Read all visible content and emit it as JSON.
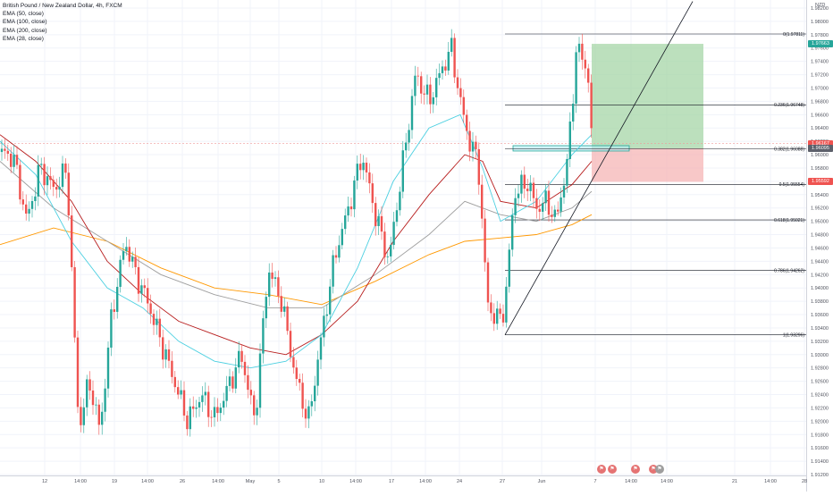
{
  "legend": {
    "symbol": "British Pound / New Zealand Dollar, 4h, FXCM",
    "indicators": [
      "EMA (50, close)",
      "EMA (100, close)",
      "EMA (200, close)",
      "EMA (28, close)"
    ]
  },
  "price_scale": {
    "currency": "NZD",
    "ticks": [
      "1.98200",
      "1.98000",
      "1.97800",
      "1.97600",
      "1.97400",
      "1.97200",
      "1.97000",
      "1.96800",
      "1.96600",
      "1.96400",
      "1.96200",
      "1.96000",
      "1.95800",
      "1.95600",
      "1.95400",
      "1.95200",
      "1.95000",
      "1.94800",
      "1.94600",
      "1.94400",
      "1.94200",
      "1.94000",
      "1.93800",
      "1.93600",
      "1.93400",
      "1.93200",
      "1.93000",
      "1.92800",
      "1.92600",
      "1.92400",
      "1.92200",
      "1.92000",
      "1.91800",
      "1.91600",
      "1.91400",
      "1.91200"
    ],
    "badges": [
      {
        "text": "1.97663",
        "color": "#26a69a",
        "price": 1.97663
      },
      {
        "text": "1.96167",
        "color": "#ef5350",
        "price": 1.96167
      },
      {
        "text": "1.96095",
        "color": "#5d606b",
        "price": 1.96095
      },
      {
        "text": "1.95592",
        "color": "#ef5350",
        "price": 1.95592
      }
    ]
  },
  "time_scale": {
    "labels": [
      "12",
      "14:00",
      "19",
      "14:00",
      "26",
      "14:00",
      "May",
      "5",
      "10",
      "14:00",
      "17",
      "14:00",
      "24",
      "27",
      "Jun",
      "7",
      "14:00",
      "14:00",
      "21",
      "14:00",
      "28"
    ]
  },
  "fib": {
    "levels": [
      {
        "label": "0(1.97811)",
        "price": 1.97811
      },
      {
        "label": "0.236(1.96748)",
        "price": 1.96748
      },
      {
        "label": "0.382(1.96088)",
        "price": 1.96088
      },
      {
        "label": "0.5(1.95554)",
        "price": 1.95554
      },
      {
        "label": "0.618(1.95021)",
        "price": 1.95021
      },
      {
        "label": "0.786(1.94262)",
        "price": 1.94262
      },
      {
        "label": "1(1.93296)",
        "price": 1.93296
      }
    ]
  },
  "position": {
    "type": "long",
    "entry": 1.96095,
    "target": 1.97663,
    "stop": 1.95592,
    "colors": {
      "profit": "#a5d6a7",
      "loss": "#f5b5b5"
    }
  },
  "chart_data": {
    "type": "candlestick",
    "title": "British Pound / New Zealand Dollar, 4h, FXCM",
    "ylim": [
      1.911,
      1.983
    ],
    "series_colors": {
      "up": "#26a69a",
      "down": "#ef5350",
      "ema50": "#b71c1c",
      "ema100": "#9e9e9e",
      "ema200": "#ff9800",
      "ema28": "#4dd0e1"
    },
    "price_path": [
      [
        0,
        1.9604
      ],
      [
        15,
        1.9596
      ],
      [
        30,
        1.95
      ],
      [
        45,
        1.9582
      ],
      [
        60,
        1.9548
      ],
      [
        75,
        1.9578
      ],
      [
        88,
        1.919
      ],
      [
        100,
        1.926
      ],
      [
        112,
        1.9185
      ],
      [
        125,
        1.936
      ],
      [
        140,
        1.947
      ],
      [
        152,
        1.942
      ],
      [
        165,
        1.938
      ],
      [
        180,
        1.932
      ],
      [
        195,
        1.926
      ],
      [
        210,
        1.92
      ],
      [
        225,
        1.924
      ],
      [
        240,
        1.9205
      ],
      [
        255,
        1.925
      ],
      [
        270,
        1.93
      ],
      [
        285,
        1.92
      ],
      [
        300,
        1.943
      ],
      [
        315,
        1.938
      ],
      [
        330,
        1.927
      ],
      [
        345,
        1.92
      ],
      [
        360,
        1.933
      ],
      [
        375,
        1.945
      ],
      [
        390,
        1.952
      ],
      [
        405,
        1.96
      ],
      [
        420,
        1.951
      ],
      [
        435,
        1.944
      ],
      [
        450,
        1.958
      ],
      [
        465,
        1.972
      ],
      [
        480,
        1.968
      ],
      [
        495,
        1.973
      ],
      [
        505,
        1.976
      ],
      [
        515,
        1.968
      ],
      [
        525,
        1.962
      ],
      [
        535,
        1.959
      ],
      [
        545,
        1.938
      ],
      [
        555,
        1.935
      ],
      [
        565,
        1.937
      ],
      [
        575,
        1.954
      ],
      [
        590,
        1.956
      ],
      [
        600,
        1.952
      ],
      [
        612,
        1.953
      ],
      [
        622,
        1.95
      ],
      [
        635,
        1.959
      ],
      [
        645,
        1.976
      ],
      [
        652,
        1.9745
      ],
      [
        658,
        1.972
      ],
      [
        662,
        1.9617
      ]
    ],
    "ema50_path": [
      [
        0,
        1.963
      ],
      [
        40,
        1.959
      ],
      [
        80,
        1.953
      ],
      [
        120,
        1.944
      ],
      [
        160,
        1.939
      ],
      [
        200,
        1.935
      ],
      [
        240,
        1.933
      ],
      [
        280,
        1.931
      ],
      [
        320,
        1.93
      ],
      [
        360,
        1.933
      ],
      [
        400,
        1.938
      ],
      [
        440,
        1.947
      ],
      [
        480,
        1.954
      ],
      [
        520,
        1.96
      ],
      [
        540,
        1.959
      ],
      [
        560,
        1.953
      ],
      [
        600,
        1.952
      ],
      [
        640,
        1.9555
      ],
      [
        662,
        1.959
      ]
    ],
    "ema100_path": [
      [
        0,
        1.959
      ],
      [
        60,
        1.952
      ],
      [
        120,
        1.947
      ],
      [
        180,
        1.942
      ],
      [
        240,
        1.939
      ],
      [
        300,
        1.937
      ],
      [
        360,
        1.937
      ],
      [
        420,
        1.942
      ],
      [
        480,
        1.948
      ],
      [
        520,
        1.953
      ],
      [
        560,
        1.951
      ],
      [
        600,
        1.95
      ],
      [
        640,
        1.952
      ],
      [
        662,
        1.9545
      ]
    ],
    "ema200_path": [
      [
        0,
        1.9465
      ],
      [
        60,
        1.949
      ],
      [
        120,
        1.947
      ],
      [
        180,
        1.943
      ],
      [
        240,
        1.94
      ],
      [
        300,
        1.939
      ],
      [
        360,
        1.9375
      ],
      [
        420,
        1.941
      ],
      [
        480,
        1.945
      ],
      [
        520,
        1.947
      ],
      [
        560,
        1.9475
      ],
      [
        600,
        1.948
      ],
      [
        640,
        1.9495
      ],
      [
        662,
        1.951
      ]
    ],
    "ema28_path": [
      [
        0,
        1.962
      ],
      [
        40,
        1.957
      ],
      [
        80,
        1.947
      ],
      [
        120,
        1.94
      ],
      [
        160,
        1.937
      ],
      [
        200,
        1.932
      ],
      [
        240,
        1.929
      ],
      [
        280,
        1.928
      ],
      [
        320,
        1.929
      ],
      [
        360,
        1.933
      ],
      [
        400,
        1.943
      ],
      [
        440,
        1.956
      ],
      [
        480,
        1.964
      ],
      [
        515,
        1.966
      ],
      [
        540,
        1.958
      ],
      [
        560,
        1.95
      ],
      [
        600,
        1.953
      ],
      [
        640,
        1.96
      ],
      [
        662,
        1.963
      ]
    ],
    "trendline": {
      "from": [
        565,
        1.93296
      ],
      "to": [
        775,
        1.983
      ]
    }
  }
}
